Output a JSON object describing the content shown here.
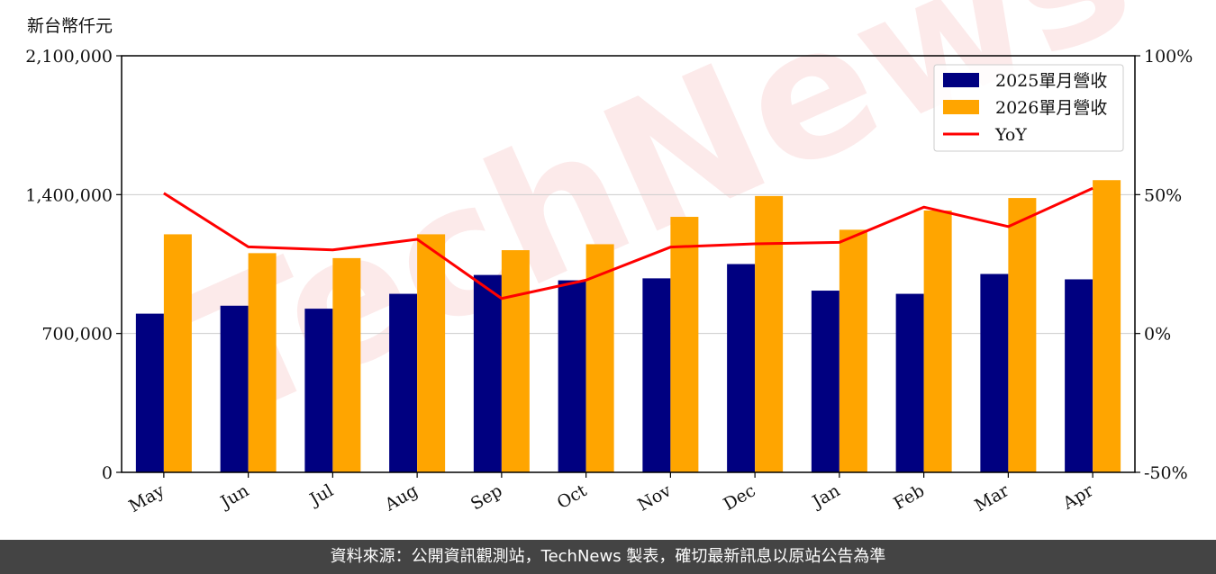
{
  "unit_label": "新台幣仟元",
  "footer_text": "資料來源：公開資訊觀測站，TechNews 製表，確切最新訊息以原站公告為準",
  "watermark": "TechNews",
  "chart_data": {
    "type": "bar",
    "categories": [
      "May",
      "Jun",
      "Jul",
      "Aug",
      "Sep",
      "Oct",
      "Nov",
      "Dec",
      "Jan",
      "Feb",
      "Mar",
      "Apr"
    ],
    "series": [
      {
        "name": "2025單月營收",
        "type": "bar",
        "axis": "left",
        "color": "#000080",
        "values": [
          800000,
          840000,
          825000,
          900000,
          995000,
          968000,
          978000,
          1050000,
          916000,
          900000,
          1000000,
          973000
        ]
      },
      {
        "name": "2026單月營收",
        "type": "bar",
        "axis": "left",
        "color": "#FFA500",
        "values": [
          1200000,
          1105000,
          1080000,
          1200000,
          1120000,
          1150000,
          1288000,
          1393000,
          1223000,
          1320000,
          1383000,
          1473000
        ]
      },
      {
        "name": "YoY",
        "type": "line",
        "axis": "right",
        "color": "#FF0000",
        "values": [
          50.5,
          31.2,
          30.1,
          33.9,
          12.6,
          19.2,
          31.1,
          32.3,
          32.8,
          45.5,
          38.5,
          52.3
        ]
      }
    ],
    "left_axis": {
      "ylim": [
        0,
        2100000
      ],
      "ticks": [
        0,
        700000,
        1400000,
        2100000
      ],
      "tick_labels": [
        "0",
        "700,000",
        "1,400,000",
        "2,100,000"
      ]
    },
    "right_axis": {
      "ylim": [
        -50,
        100
      ],
      "ticks": [
        -50,
        0,
        50,
        100
      ],
      "tick_labels": [
        "-50%",
        "0%",
        "50%",
        "100%"
      ]
    },
    "grid": "horizontal",
    "legend": "top-right",
    "xtick_rotation": 30
  }
}
